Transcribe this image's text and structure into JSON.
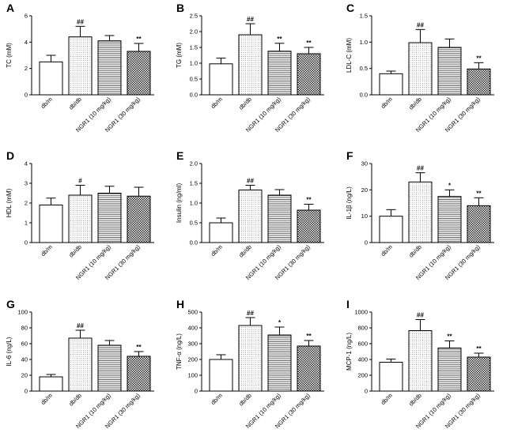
{
  "chart_data": [
    {
      "panel": "A",
      "type": "bar",
      "ylabel": "TC (mM)",
      "ylim": [
        0,
        6
      ],
      "yticks": [
        0,
        2,
        4,
        6
      ],
      "categories": [
        "db/m",
        "db/db",
        "NGR1 (10 mg/kg)",
        "NGR1 (30 mg/kg)"
      ],
      "values": [
        2.5,
        4.4,
        4.1,
        3.3
      ],
      "errors": [
        0.5,
        0.8,
        0.4,
        0.6
      ],
      "annotations": [
        "",
        "##",
        "",
        "**"
      ]
    },
    {
      "panel": "B",
      "type": "bar",
      "ylabel": "TG (mM)",
      "ylim": [
        0,
        2.5
      ],
      "yticks": [
        0,
        0.5,
        1.0,
        1.5,
        2.0,
        2.5
      ],
      "categories": [
        "db/m",
        "db/db",
        "NGR1 (10 mg/kg)",
        "NGR1 (30 mg/kg)"
      ],
      "values": [
        0.98,
        1.9,
        1.38,
        1.3
      ],
      "errors": [
        0.18,
        0.35,
        0.25,
        0.2
      ],
      "annotations": [
        "",
        "##",
        "**",
        "**"
      ]
    },
    {
      "panel": "C",
      "type": "bar",
      "ylabel": "LDL-C (mM)",
      "ylim": [
        0,
        1.5
      ],
      "yticks": [
        0,
        0.5,
        1.0,
        1.5
      ],
      "categories": [
        "db/m",
        "db/db",
        "NGR1 (10 mg/kg)",
        "NGR1 (30 mg/kg)"
      ],
      "values": [
        0.4,
        0.99,
        0.9,
        0.49
      ],
      "errors": [
        0.05,
        0.25,
        0.16,
        0.12
      ],
      "annotations": [
        "",
        "##",
        "",
        "**"
      ]
    },
    {
      "panel": "D",
      "type": "bar",
      "ylabel": "HDL (mM)",
      "ylim": [
        0,
        4
      ],
      "yticks": [
        0,
        1,
        2,
        3,
        4
      ],
      "categories": [
        "db/m",
        "db/db",
        "NGR1 (10 mg/kg)",
        "NGR1 (30 mg/kg)"
      ],
      "values": [
        1.9,
        2.4,
        2.5,
        2.35
      ],
      "errors": [
        0.35,
        0.5,
        0.35,
        0.45
      ],
      "annotations": [
        "",
        "#",
        "",
        ""
      ]
    },
    {
      "panel": "E",
      "type": "bar",
      "ylabel": "Insulin (ng/ml)",
      "ylim": [
        0,
        2.0
      ],
      "yticks": [
        0,
        0.5,
        1.0,
        1.5,
        2.0
      ],
      "categories": [
        "db/m",
        "db/db",
        "NGR1 (10 mg/kg)",
        "NGR1 (30 mg/kg)"
      ],
      "values": [
        0.5,
        1.33,
        1.2,
        0.82
      ],
      "errors": [
        0.12,
        0.12,
        0.14,
        0.15
      ],
      "annotations": [
        "",
        "##",
        "",
        "**"
      ]
    },
    {
      "panel": "F",
      "type": "bar",
      "ylabel": "IL-1β (ng/L)",
      "ylim": [
        0,
        30
      ],
      "yticks": [
        0,
        10,
        20,
        30
      ],
      "categories": [
        "db/m",
        "db/db",
        "NGR1 (10 mg/kg)",
        "NGR1 (30 mg/kg)"
      ],
      "values": [
        10,
        23,
        17.5,
        14
      ],
      "errors": [
        2.5,
        3.5,
        2.5,
        3
      ],
      "annotations": [
        "",
        "##",
        "*",
        "**"
      ]
    },
    {
      "panel": "G",
      "type": "bar",
      "ylabel": "IL-6 (ng/L)",
      "ylim": [
        0,
        100
      ],
      "yticks": [
        0,
        20,
        40,
        60,
        80,
        100
      ],
      "categories": [
        "db/m",
        "db/db",
        "NGR1 (10 mg/kg)",
        "NGR1 (30 mg/kg)"
      ],
      "values": [
        18,
        67,
        58,
        44
      ],
      "errors": [
        3,
        10,
        6,
        6
      ],
      "annotations": [
        "",
        "##",
        "",
        "**"
      ]
    },
    {
      "panel": "H",
      "type": "bar",
      "ylabel": "TNF-α (ng/L)",
      "ylim": [
        0,
        500
      ],
      "yticks": [
        0,
        100,
        200,
        300,
        400,
        500
      ],
      "categories": [
        "db/m",
        "db/db",
        "NGR1 (10 mg/kg)",
        "NGR1 (30 mg/kg)"
      ],
      "values": [
        200,
        415,
        355,
        285
      ],
      "errors": [
        30,
        50,
        50,
        35
      ],
      "annotations": [
        "",
        "##",
        "*",
        "**"
      ]
    },
    {
      "panel": "I",
      "type": "bar",
      "ylabel": "MCP-1 (ng/L)",
      "ylim": [
        0,
        1000
      ],
      "yticks": [
        0,
        200,
        400,
        600,
        800,
        1000
      ],
      "categories": [
        "db/m",
        "db/db",
        "NGR1 (10 mg/kg)",
        "NGR1 (30 mg/kg)"
      ],
      "values": [
        365,
        765,
        545,
        430
      ],
      "errors": [
        40,
        140,
        90,
        50
      ],
      "annotations": [
        "",
        "##",
        "**",
        "**"
      ]
    }
  ],
  "colors": {
    "axis": "#000000",
    "bar_fill": "#ffffff",
    "pattern": "#444444"
  }
}
